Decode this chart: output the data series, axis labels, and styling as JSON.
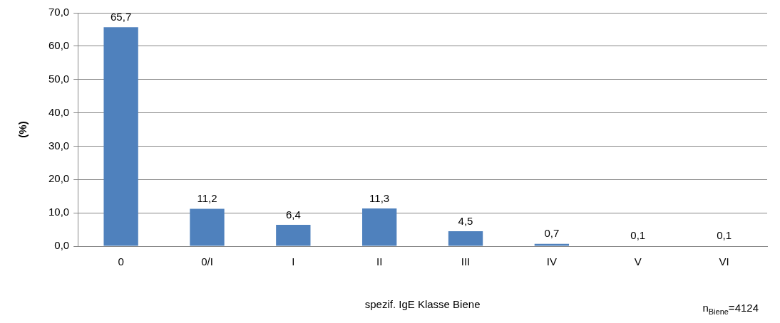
{
  "chart_data": {
    "type": "bar",
    "categories": [
      "0",
      "0/I",
      "I",
      "II",
      "III",
      "IV",
      "V",
      "VI"
    ],
    "values": [
      65.7,
      11.2,
      6.4,
      11.3,
      4.5,
      0.7,
      0.1,
      0.1
    ],
    "value_labels": [
      "65,7",
      "11,2",
      "6,4",
      "11,3",
      "4,5",
      "0,7",
      "0,1",
      "0,1"
    ],
    "color": "#4f81bd",
    "ylabel": "(%)",
    "xlabel": "spezif. IgE Klasse Biene",
    "ylim": [
      0,
      70
    ],
    "yticks": [
      {
        "value": 0,
        "label": "0,0"
      },
      {
        "value": 10,
        "label": "10,0"
      },
      {
        "value": 20,
        "label": "20,0"
      },
      {
        "value": 30,
        "label": "30,0"
      },
      {
        "value": 40,
        "label": "40,0"
      },
      {
        "value": 50,
        "label": "50,0"
      },
      {
        "value": 60,
        "label": "60,0"
      },
      {
        "value": 70,
        "label": "70,0"
      }
    ],
    "grid": "y",
    "legend": false,
    "annotations": [
      "n$_{Biene}$=4124"
    ]
  }
}
